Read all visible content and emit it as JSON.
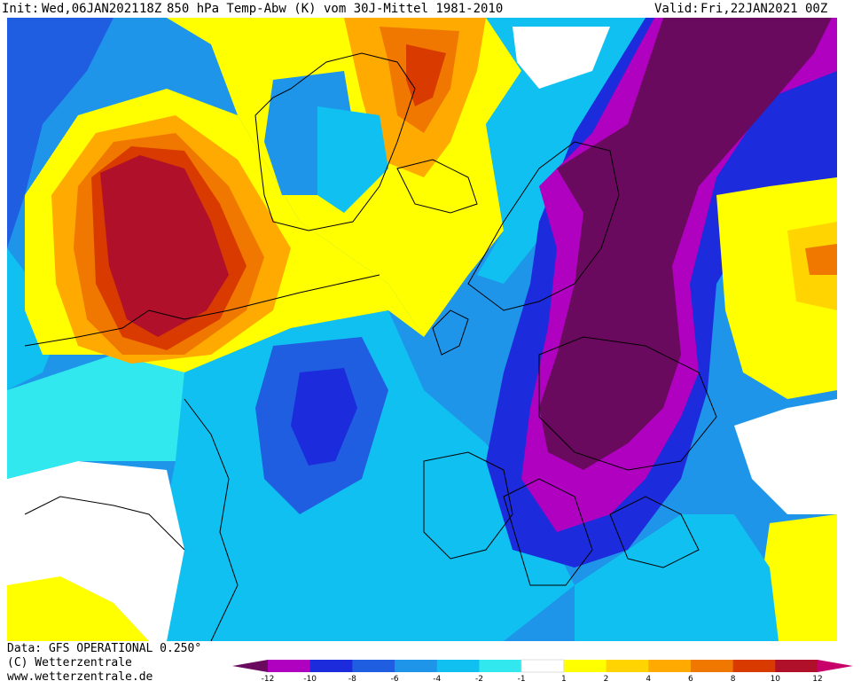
{
  "header": {
    "init_label": "Init:",
    "init_value": "Wed,06JAN2021",
    "init_hour": "18Z",
    "title": "850 hPa Temp-Abw (K) vom 30J-Mittel 1981-2010",
    "valid_label": "Valid:",
    "valid_value": "Fri,22JAN2021 00Z"
  },
  "footer": {
    "data_source": "Data: GFS OPERATIONAL 0.250°",
    "copyright": "(C) Wetterzentrale",
    "website": "www.wetterzentrale.de"
  },
  "legend": {
    "ticks": [
      "-12",
      "-10",
      "-8",
      "-6",
      "-4",
      "-2",
      "-1",
      "1",
      "2",
      "4",
      "6",
      "8",
      "10",
      "12"
    ],
    "colors": [
      "#6a0a5e",
      "#b000c0",
      "#1c2bdc",
      "#1f5ee0",
      "#1f95ea",
      "#10c0f0",
      "#30e8ee",
      "#ffffff",
      "#ffff00",
      "#ffd400",
      "#ffaa00",
      "#f07800",
      "#d83a00",
      "#b0102a",
      "#c8006a"
    ]
  },
  "colors": {
    "deep_cold": "#6a0a5e",
    "cold_magenta": "#b000c0",
    "cold_blue": "#1c2bdc",
    "mid_blue": "#1f5ee0",
    "light_blue": "#1f95ea",
    "cyan": "#10c0f0",
    "pale_cyan": "#30e8ee",
    "neutral": "#ffffff",
    "yellow": "#ffff00",
    "gold": "#ffd400",
    "orange": "#ffaa00",
    "dark_orange": "#f07800",
    "red_orange": "#d83a00",
    "crimson": "#b0102a"
  }
}
